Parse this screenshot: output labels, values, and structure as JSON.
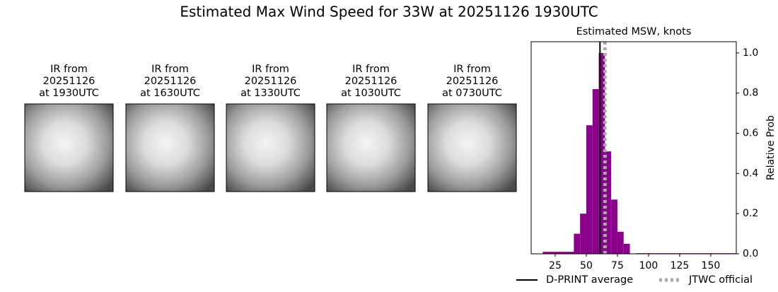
{
  "title": "Estimated Max Wind Speed for 33W at 20251126 1930UTC",
  "panels": [
    {
      "lines": [
        "IR from",
        "20251126",
        "at 1930UTC"
      ]
    },
    {
      "lines": [
        "IR from",
        "20251126",
        "at 1630UTC"
      ]
    },
    {
      "lines": [
        "IR from",
        "20251126",
        "at 1330UTC"
      ]
    },
    {
      "lines": [
        "IR from",
        "20251126",
        "at 1030UTC"
      ]
    },
    {
      "lines": [
        "IR from",
        "20251126",
        "at 0730UTC"
      ]
    }
  ],
  "chart_data": {
    "type": "histogram",
    "title": "Estimated MSW, knots",
    "ylabel": "Relative Prob",
    "color": "#8b008b",
    "bins": [
      15,
      20,
      25,
      30,
      35,
      40,
      45,
      50,
      55,
      60,
      65,
      70,
      75,
      80,
      85,
      90,
      95,
      100,
      105,
      110,
      115,
      120,
      125,
      130,
      135,
      140,
      145,
      150,
      155,
      160,
      165,
      170
    ],
    "values": [
      0.01,
      0.01,
      0.01,
      0.01,
      0.01,
      0.1,
      0.2,
      0.64,
      0.82,
      1.0,
      0.51,
      0.27,
      0.11,
      0.05,
      0.0,
      0.003,
      0.003,
      0.003,
      0.003,
      0.003,
      0.003,
      0.003,
      0.003,
      0.003,
      0.003,
      0.003,
      0.003,
      0.003,
      0.003,
      0.003,
      0.003
    ],
    "xlim": [
      5.7,
      170.5
    ],
    "ylim": [
      0,
      1.056
    ],
    "xticks": [
      25,
      50,
      75,
      100,
      125,
      150
    ],
    "yticks": [
      {
        "value": 0,
        "label": "0.0"
      },
      {
        "value": 0.2,
        "label": "0.2"
      },
      {
        "value": 0.4,
        "label": "0.4"
      },
      {
        "value": 0.6,
        "label": "0.6"
      },
      {
        "value": 0.8,
        "label": "0.8"
      },
      {
        "value": 1.0,
        "label": "1.0"
      }
    ],
    "lines": [
      {
        "name": "D-PRINT average",
        "value": 61,
        "color": "#000000",
        "style": "solid"
      },
      {
        "name": "JTWC official",
        "value": 65,
        "color": "#aaaaaa",
        "style": "dotted"
      }
    ]
  }
}
